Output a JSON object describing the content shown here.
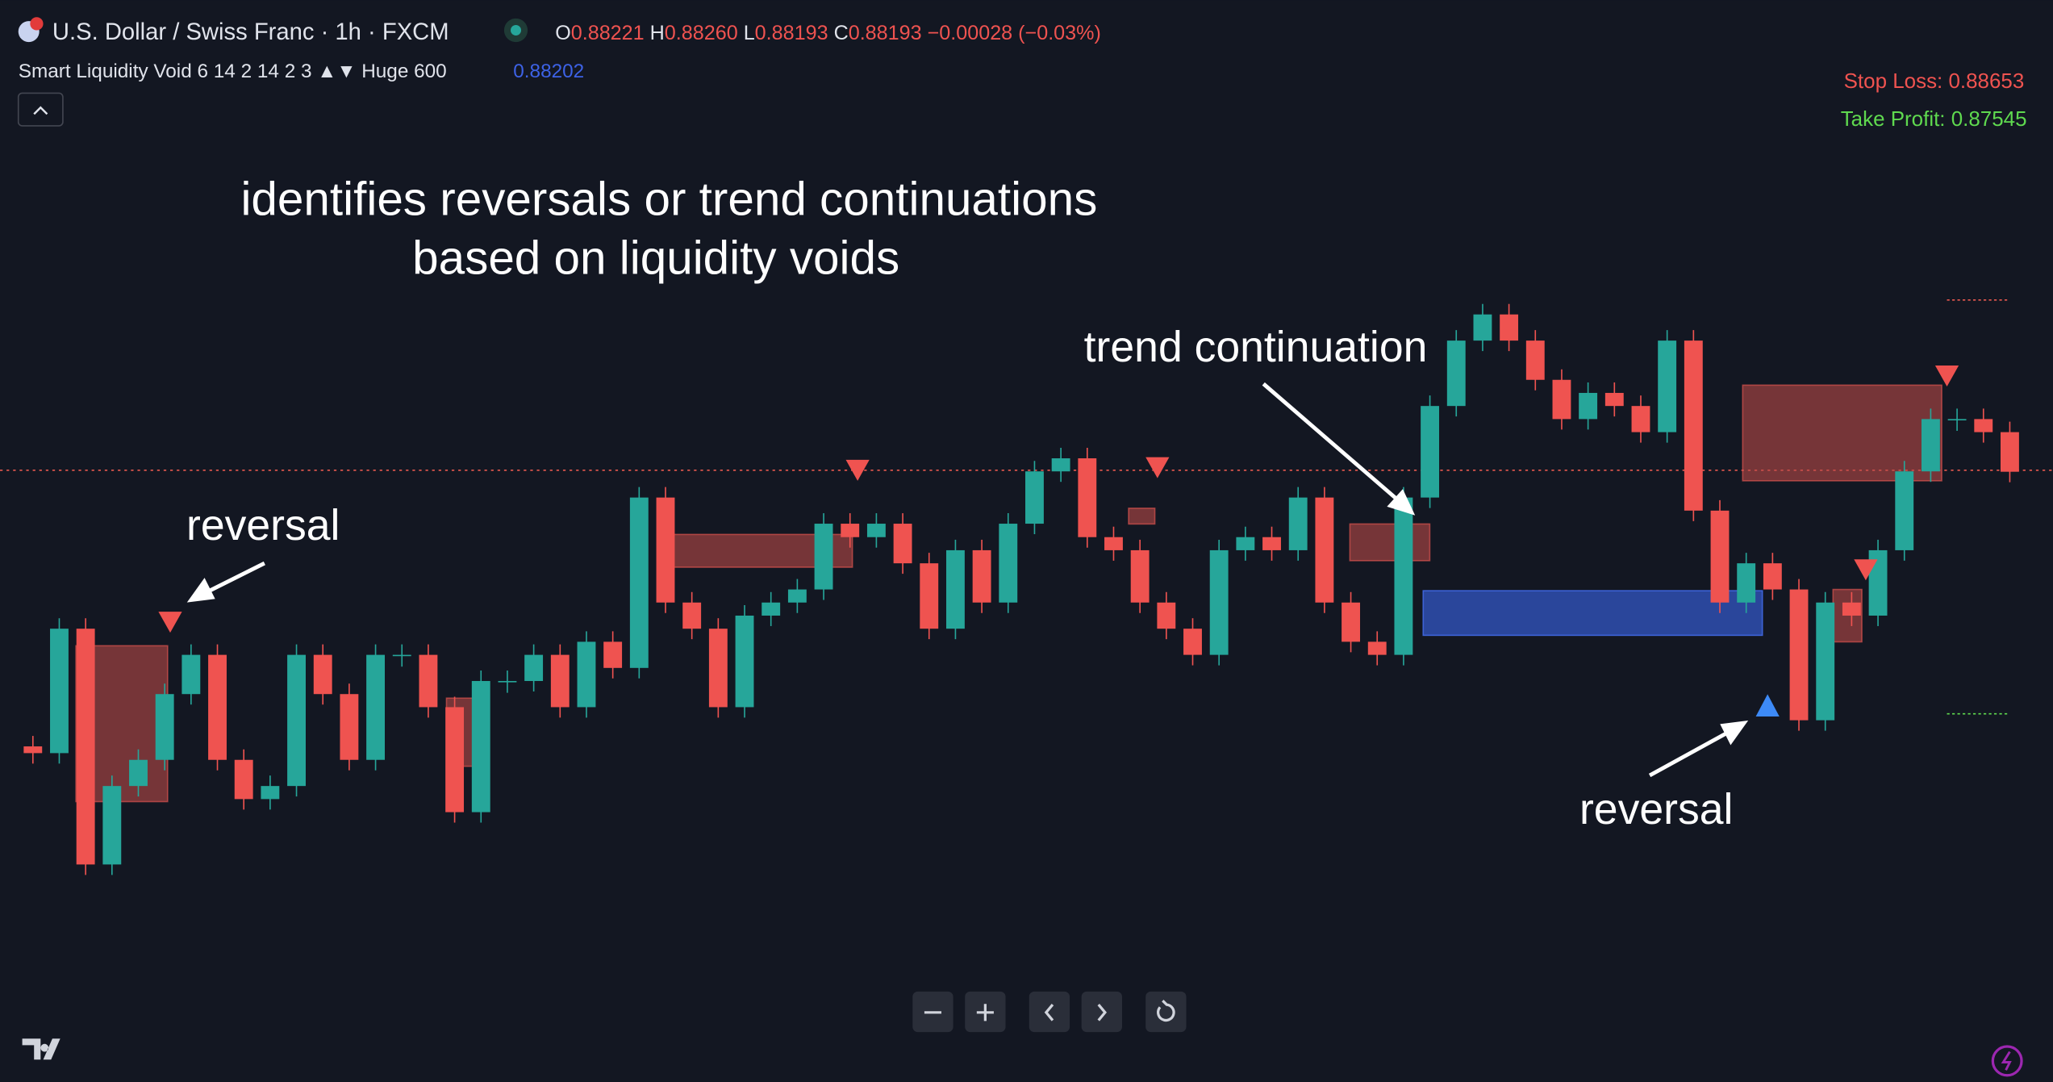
{
  "header": {
    "symbol": "U.S. Dollar / Swiss Franc · 1h · FXCM",
    "ohlc": [
      {
        "label": "O",
        "value": "0.88221"
      },
      {
        "label": "H",
        "value": "0.88260"
      },
      {
        "label": "L",
        "value": "0.88193"
      },
      {
        "label": "C",
        "value": "0.88193"
      }
    ],
    "change": "−0.00028 (−0.03%)"
  },
  "indicator": {
    "name": "Smart Liquidity Void 6 14 2 14 2 3 ▲▼ Huge 600",
    "value": "0.88202"
  },
  "levels": {
    "stop_loss": "Stop Loss: 0.88653",
    "take_profit": "Take Profit: 0.87545"
  },
  "headline": [
    "identifies reversals or trend continuations",
    "based on liquidity voids"
  ],
  "annotations": [
    "reversal",
    "trend continuation",
    "reversal"
  ],
  "price_closes": [
    0.87458,
    0.8744,
    0.87773,
    0.87142,
    0.87352,
    0.87422,
    0.87598,
    0.87703,
    0.87422,
    0.87317,
    0.87352,
    0.87703,
    0.87598,
    0.87422,
    0.87703,
    0.87703,
    0.87563,
    0.87282,
    0.87633,
    0.87633,
    0.87703,
    0.87563,
    0.87738,
    0.87668,
    0.88124,
    0.87843,
    0.87773,
    0.87563,
    0.87808,
    0.87843,
    0.87878,
    0.88054,
    0.88018,
    0.88054,
    0.87948,
    0.87773,
    0.87983,
    0.87843,
    0.88054,
    0.88194,
    0.88229,
    0.88018,
    0.87983,
    0.87843,
    0.87773,
    0.87703,
    0.87983,
    0.88018,
    0.87983,
    0.88124,
    0.87843,
    0.87738,
    0.87703,
    0.88124,
    0.88369,
    0.88544,
    0.88614,
    0.88544,
    0.88439,
    0.88334,
    0.88404,
    0.88369,
    0.88299,
    0.88544,
    0.88089,
    0.87843,
    0.87948,
    0.87878,
    0.87528,
    0.87843,
    0.87808,
    0.87983,
    0.88194,
    0.88334,
    0.88334,
    0.88299,
    0.88193
  ]
}
